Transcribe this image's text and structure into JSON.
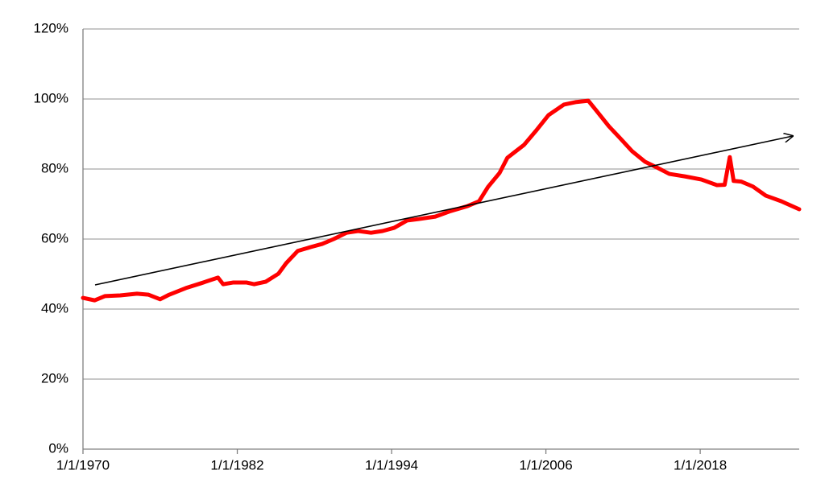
{
  "chart_data": {
    "type": "line",
    "x": [
      1970,
      1970.9,
      1971.7,
      1972.9,
      1974.2,
      1975.1,
      1976,
      1976.7,
      1978,
      1979.2,
      1980.5,
      1980.9,
      1981.7,
      1982.7,
      1983.3,
      1984.2,
      1985.2,
      1985.8,
      1986.7,
      1987.7,
      1988.6,
      1989.5,
      1990.5,
      1991.4,
      1992.4,
      1993.3,
      1994.2,
      1995.2,
      1996.1,
      1997.4,
      1998.6,
      1999.9,
      2000.8,
      2001.5,
      2002.4,
      2003,
      2004.3,
      2005.2,
      2006.2,
      2007.4,
      2008.3,
      2009.3,
      2009.9,
      2010.9,
      2011.8,
      2012.7,
      2013.7,
      2014.6,
      2015.6,
      2016.8,
      2018.1,
      2019.3,
      2019.9,
      2020.3,
      2020.6,
      2021.2,
      2022.1,
      2023.1,
      2024.3,
      2025.7
    ],
    "values": [
      43.2,
      42.5,
      43.7,
      43.9,
      44.4,
      44.1,
      42.8,
      44.1,
      46,
      47.4,
      49,
      47.1,
      47.6,
      47.6,
      47.1,
      47.8,
      50.1,
      53.1,
      56.6,
      57.7,
      58.6,
      60,
      61.8,
      62.3,
      61.8,
      62.3,
      63.2,
      65.3,
      65.7,
      66.4,
      68,
      69.4,
      70.8,
      74.9,
      78.9,
      83.2,
      86.9,
      90.8,
      95.4,
      98.4,
      99.1,
      99.5,
      96.8,
      92.2,
      88.7,
      85.1,
      82.1,
      80.5,
      78.6,
      77.9,
      77,
      75.4,
      75.5,
      83.4,
      76.6,
      76.4,
      75,
      72.4,
      70.8,
      68.5
    ],
    "color": "#ff0000",
    "xlim": [
      1970,
      2025.7
    ],
    "xticks": [
      {
        "value": 1970,
        "label": "1/1/1970"
      },
      {
        "value": 1982,
        "label": "1/1/1982"
      },
      {
        "value": 1994,
        "label": "1/1/1994"
      },
      {
        "value": 2006,
        "label": "1/1/2006"
      },
      {
        "value": 2018,
        "label": "1/1/2018"
      }
    ],
    "ylim": [
      0,
      120
    ],
    "yticks": [
      {
        "value": 0,
        "label": "0%"
      },
      {
        "value": 20,
        "label": "20%"
      },
      {
        "value": 40,
        "label": "40%"
      },
      {
        "value": 60,
        "label": "60%"
      },
      {
        "value": 80,
        "label": "80%"
      },
      {
        "value": 100,
        "label": "100%"
      },
      {
        "value": 120,
        "label": "120%"
      }
    ],
    "grid": true
  }
}
